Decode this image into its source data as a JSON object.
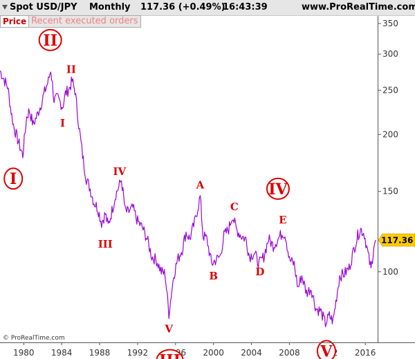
{
  "header": {
    "symbol": "Spot USD/JPY",
    "period": "Monthly",
    "quote": "117.36 (+0.49%)",
    "time": "16:43:39",
    "site": "www.ProRealTime.com"
  },
  "tabs": {
    "price": "Price",
    "orders": "Recent executed orders"
  },
  "footer": "© ProRealTime.com",
  "colors": {
    "price_line": "#9a00d8",
    "wave_label": "#dd0000",
    "last_price_badge": "#ffcc00"
  },
  "chart_data": {
    "type": "line",
    "y_scale": "log",
    "ylim": [
      70,
      365
    ],
    "xlim": [
      1977.5,
      2017.3
    ],
    "x_ticks": [
      "1980",
      "1984",
      "1988",
      "1992",
      "1996",
      "2000",
      "2004",
      "2008",
      "2012",
      "2016"
    ],
    "y_ticks": [
      "350",
      "300",
      "250",
      "200",
      "150",
      "100"
    ],
    "last_price": "117.36",
    "series": [
      {
        "points": [
          [
            1977.5,
            276
          ],
          [
            1978.0,
            262
          ],
          [
            1978.3,
            255
          ],
          [
            1978.6,
            230
          ],
          [
            1978.9,
            210
          ],
          [
            1979.2,
            200
          ],
          [
            1979.6,
            188
          ],
          [
            1979.9,
            180
          ],
          [
            1980.3,
            218
          ],
          [
            1980.6,
            226
          ],
          [
            1981.0,
            210
          ],
          [
            1981.4,
            220
          ],
          [
            1981.8,
            232
          ],
          [
            1982.2,
            248
          ],
          [
            1982.6,
            262
          ],
          [
            1982.85,
            278
          ],
          [
            1983.2,
            238
          ],
          [
            1983.6,
            240
          ],
          [
            1984.1,
            230
          ],
          [
            1984.4,
            246
          ],
          [
            1984.8,
            252
          ],
          [
            1985.1,
            262
          ],
          [
            1985.4,
            250
          ],
          [
            1985.8,
            210
          ],
          [
            1986.2,
            180
          ],
          [
            1986.6,
            160
          ],
          [
            1987.0,
            152
          ],
          [
            1987.4,
            142
          ],
          [
            1987.8,
            138
          ],
          [
            1988.2,
            128
          ],
          [
            1988.6,
            134
          ],
          [
            1988.9,
            126
          ],
          [
            1989.3,
            136
          ],
          [
            1989.7,
            148
          ],
          [
            1990.1,
            155
          ],
          [
            1990.3,
            159
          ],
          [
            1990.7,
            136
          ],
          [
            1991.0,
            135
          ],
          [
            1991.5,
            138
          ],
          [
            1992.0,
            129
          ],
          [
            1992.5,
            125
          ],
          [
            1993.0,
            118
          ],
          [
            1993.5,
            108
          ],
          [
            1994.0,
            106
          ],
          [
            1994.5,
            100
          ],
          [
            1994.9,
            99
          ],
          [
            1995.3,
            81
          ],
          [
            1995.8,
            98
          ],
          [
            1996.2,
            106
          ],
          [
            1996.7,
            112
          ],
          [
            1997.1,
            122
          ],
          [
            1997.5,
            118
          ],
          [
            1998.0,
            128
          ],
          [
            1998.6,
            146
          ],
          [
            1998.9,
            120
          ],
          [
            1999.3,
            118
          ],
          [
            1999.8,
            104
          ],
          [
            2000.2,
            106
          ],
          [
            2000.7,
            108
          ],
          [
            2001.1,
            120
          ],
          [
            2001.6,
            124
          ],
          [
            2002.0,
            133
          ],
          [
            2002.4,
            124
          ],
          [
            2002.9,
            120
          ],
          [
            2003.4,
            118
          ],
          [
            2003.8,
            108
          ],
          [
            2004.3,
            110
          ],
          [
            2004.8,
            104
          ],
          [
            2005.3,
            108
          ],
          [
            2005.8,
            118
          ],
          [
            2006.3,
            114
          ],
          [
            2006.8,
            118
          ],
          [
            2007.3,
            122
          ],
          [
            2007.6,
            120
          ],
          [
            2008.0,
            106
          ],
          [
            2008.5,
            104
          ],
          [
            2008.9,
            92
          ],
          [
            2009.3,
            98
          ],
          [
            2009.8,
            90
          ],
          [
            2010.3,
            92
          ],
          [
            2010.8,
            83
          ],
          [
            2011.3,
            82
          ],
          [
            2011.8,
            77
          ],
          [
            2012.2,
            80
          ],
          [
            2012.6,
            78
          ],
          [
            2012.9,
            86
          ],
          [
            2013.3,
            98
          ],
          [
            2013.8,
            99
          ],
          [
            2014.3,
            102
          ],
          [
            2014.8,
            112
          ],
          [
            2015.2,
            120
          ],
          [
            2015.5,
            124
          ],
          [
            2015.9,
            121
          ],
          [
            2016.3,
            109
          ],
          [
            2016.6,
            101
          ],
          [
            2016.9,
            114
          ],
          [
            2017.1,
            117.36
          ]
        ]
      }
    ],
    "annotations": [
      {
        "text": "II",
        "x": 1982.8,
        "y": 322,
        "circled": true,
        "size": "large"
      },
      {
        "text": "I",
        "x": 1978.9,
        "y": 160,
        "circled": true,
        "size": "large"
      },
      {
        "text": "II",
        "x": 1985.0,
        "y": 278,
        "circled": false,
        "size": "small"
      },
      {
        "text": "I",
        "x": 1984.1,
        "y": 212,
        "circled": false,
        "size": "small"
      },
      {
        "text": "IV",
        "x": 1990.1,
        "y": 166,
        "circled": false,
        "size": "small"
      },
      {
        "text": "III",
        "x": 1988.6,
        "y": 115,
        "circled": false,
        "size": "small"
      },
      {
        "text": "A",
        "x": 1998.6,
        "y": 155,
        "circled": false,
        "size": "small"
      },
      {
        "text": "C",
        "x": 2002.2,
        "y": 139,
        "circled": false,
        "size": "small"
      },
      {
        "text": "IV",
        "x": 2006.8,
        "y": 152,
        "circled": true,
        "size": "large"
      },
      {
        "text": "E",
        "x": 2007.3,
        "y": 130,
        "circled": false,
        "size": "small"
      },
      {
        "text": "B",
        "x": 2000.0,
        "y": 98,
        "circled": false,
        "size": "small"
      },
      {
        "text": "D",
        "x": 2004.9,
        "y": 100,
        "circled": false,
        "size": "small"
      },
      {
        "text": "V",
        "x": 1995.3,
        "y": 75,
        "circled": false,
        "size": "small"
      },
      {
        "text": "III",
        "x": 1995.4,
        "y": 64,
        "circled": true,
        "size": "large"
      },
      {
        "text": "V",
        "x": 2011.9,
        "y": 67,
        "circled": true,
        "size": "large"
      }
    ]
  }
}
